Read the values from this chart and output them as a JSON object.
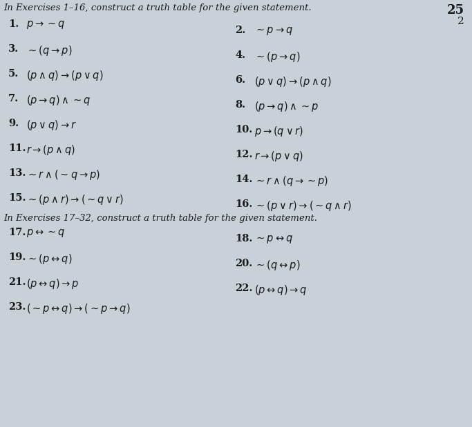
{
  "background_color": "#c8d0d8",
  "title1": "In Exercises 1–16, construct a truth table for the given statement.",
  "title2": "In Exercises 17–32, construct a truth table for the given statement.",
  "corner_text": "25",
  "corner_text2": "2",
  "left_items": [
    {
      "num": "1.",
      "text": "$p \\rightarrow {\\sim}q$"
    },
    {
      "num": "3.",
      "text": "$\\sim(q \\rightarrow p)$"
    },
    {
      "num": "5.",
      "text": "$(p \\wedge q) \\rightarrow (p \\vee q)$"
    },
    {
      "num": "7.",
      "text": "$(p \\rightarrow q) \\wedge {\\sim}q$"
    },
    {
      "num": "9.",
      "text": "$(p \\vee q) \\rightarrow r$"
    },
    {
      "num": "11.",
      "text": "$r \\rightarrow (p \\wedge q)$"
    },
    {
      "num": "13.",
      "text": "$\\sim r \\wedge (\\sim q \\rightarrow p)$"
    },
    {
      "num": "15.",
      "text": "$\\sim(p \\wedge r) \\rightarrow (\\sim q \\vee r)$"
    }
  ],
  "right_items": [
    {
      "num": "2.",
      "text": "$\\sim p \\rightarrow q$"
    },
    {
      "num": "4.",
      "text": "$\\sim(p \\rightarrow q)$"
    },
    {
      "num": "6.",
      "text": "$(p \\vee q) \\rightarrow (p \\wedge q)$"
    },
    {
      "num": "8.",
      "text": "$(p \\rightarrow q) \\wedge {\\sim}p$"
    },
    {
      "num": "10.",
      "text": "$p \\rightarrow (q \\vee r)$"
    },
    {
      "num": "12.",
      "text": "$r \\rightarrow (p \\vee q)$"
    },
    {
      "num": "14.",
      "text": "$\\sim r \\wedge (q \\rightarrow {\\sim}p)$"
    },
    {
      "num": "16.",
      "text": "$\\sim(p \\vee r) \\rightarrow (\\sim q \\wedge r)$"
    }
  ],
  "left_items2": [
    {
      "num": "17.",
      "text": "$p \\leftrightarrow {\\sim}q$"
    },
    {
      "num": "19.",
      "text": "$\\sim(p \\leftrightarrow q)$"
    },
    {
      "num": "21.",
      "text": "$(p \\leftrightarrow q) \\rightarrow p$"
    },
    {
      "num": "23.",
      "text": "$(\\sim p \\leftrightarrow q) \\rightarrow (\\sim p \\rightarrow q)$"
    }
  ],
  "right_items2": [
    {
      "num": "18.",
      "text": "$\\sim p \\leftrightarrow q$"
    },
    {
      "num": "20.",
      "text": "$\\sim(q \\leftrightarrow p)$"
    },
    {
      "num": "22.",
      "text": "$(p \\leftrightarrow q) \\rightarrow q$"
    }
  ],
  "font_size_title": 9.5,
  "font_size_items": 10.5,
  "text_color": "#1a1a1a"
}
